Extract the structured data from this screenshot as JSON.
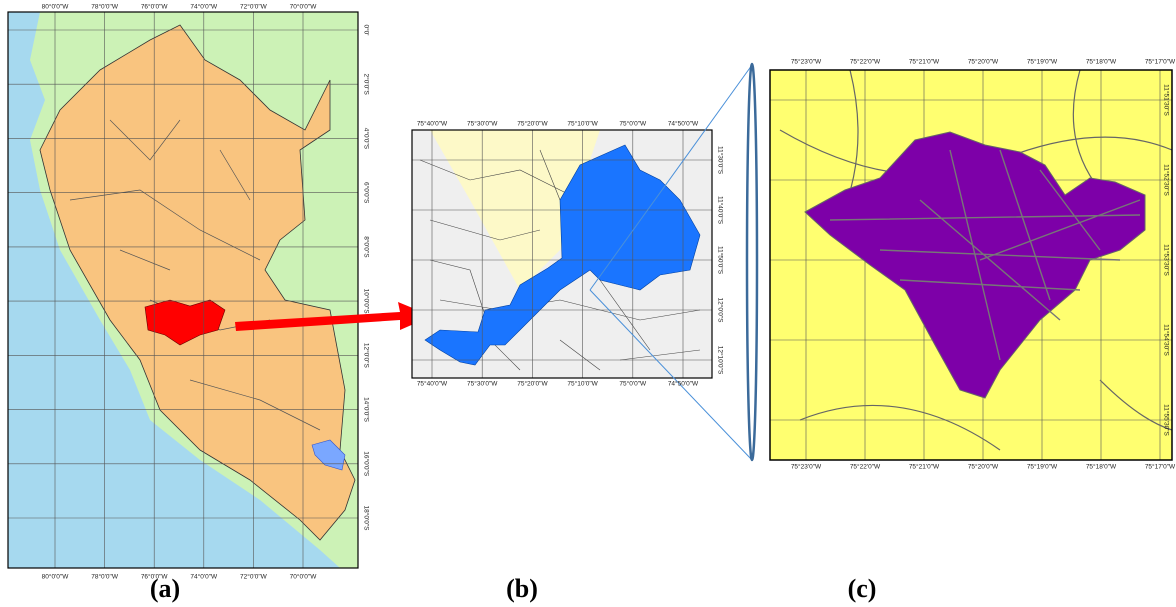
{
  "panels": [
    {
      "caption": "(a)",
      "top_labels": [
        "80°0'0\"W",
        "78°0'0\"W",
        "76°0'0\"W",
        "74°0'0\"W",
        "72°0'0\"W",
        "70°0'0\"W"
      ],
      "bottom_labels": [
        "80°0'0\"W",
        "78°0'0\"W",
        "76°0'0\"W",
        "74°0'0\"W",
        "72°0'0\"W",
        "70°0'0\"W"
      ],
      "right_labels": [
        "0°0'",
        "2°0'0\"S",
        "4°0'0\"S",
        "6°0'0\"S",
        "8°0'0\"S",
        "10°0'0\"S",
        "12°0'0\"S",
        "14°0'0\"S",
        "16°0'0\"S",
        "18°0'0\"S"
      ]
    },
    {
      "caption": "(b)",
      "top_labels": [
        "75°40'0\"W",
        "75°30'0\"W",
        "75°20'0\"W",
        "75°10'0\"W",
        "75°0'0\"W",
        "74°50'0\"W"
      ],
      "bottom_labels": [
        "75°40'0\"W",
        "75°30'0\"W",
        "75°20'0\"W",
        "75°10'0\"W",
        "75°0'0\"W",
        "74°50'0\"W"
      ],
      "right_labels": [
        "11°30'0\"S",
        "11°40'0\"S",
        "11°50'0\"S",
        "12°0'0\"S",
        "12°10'0\"S"
      ]
    },
    {
      "caption": "(c)",
      "top_labels": [
        "75°23'0\"W",
        "75°22'0\"W",
        "75°21'0\"W",
        "75°20'0\"W",
        "75°19'0\"W",
        "75°18'0\"W",
        "75°17'0\"W"
      ],
      "bottom_labels": [
        "75°23'0\"W",
        "75°22'0\"W",
        "75°21'0\"W",
        "75°20'0\"W",
        "75°19'0\"W",
        "75°18'0\"W",
        "75°17'0\"W"
      ],
      "right_labels": [
        "11°51'30\"S",
        "11°52'30\"S",
        "11°53'30\"S",
        "11°54'30\"S",
        "11°55'30\"S"
      ]
    }
  ]
}
